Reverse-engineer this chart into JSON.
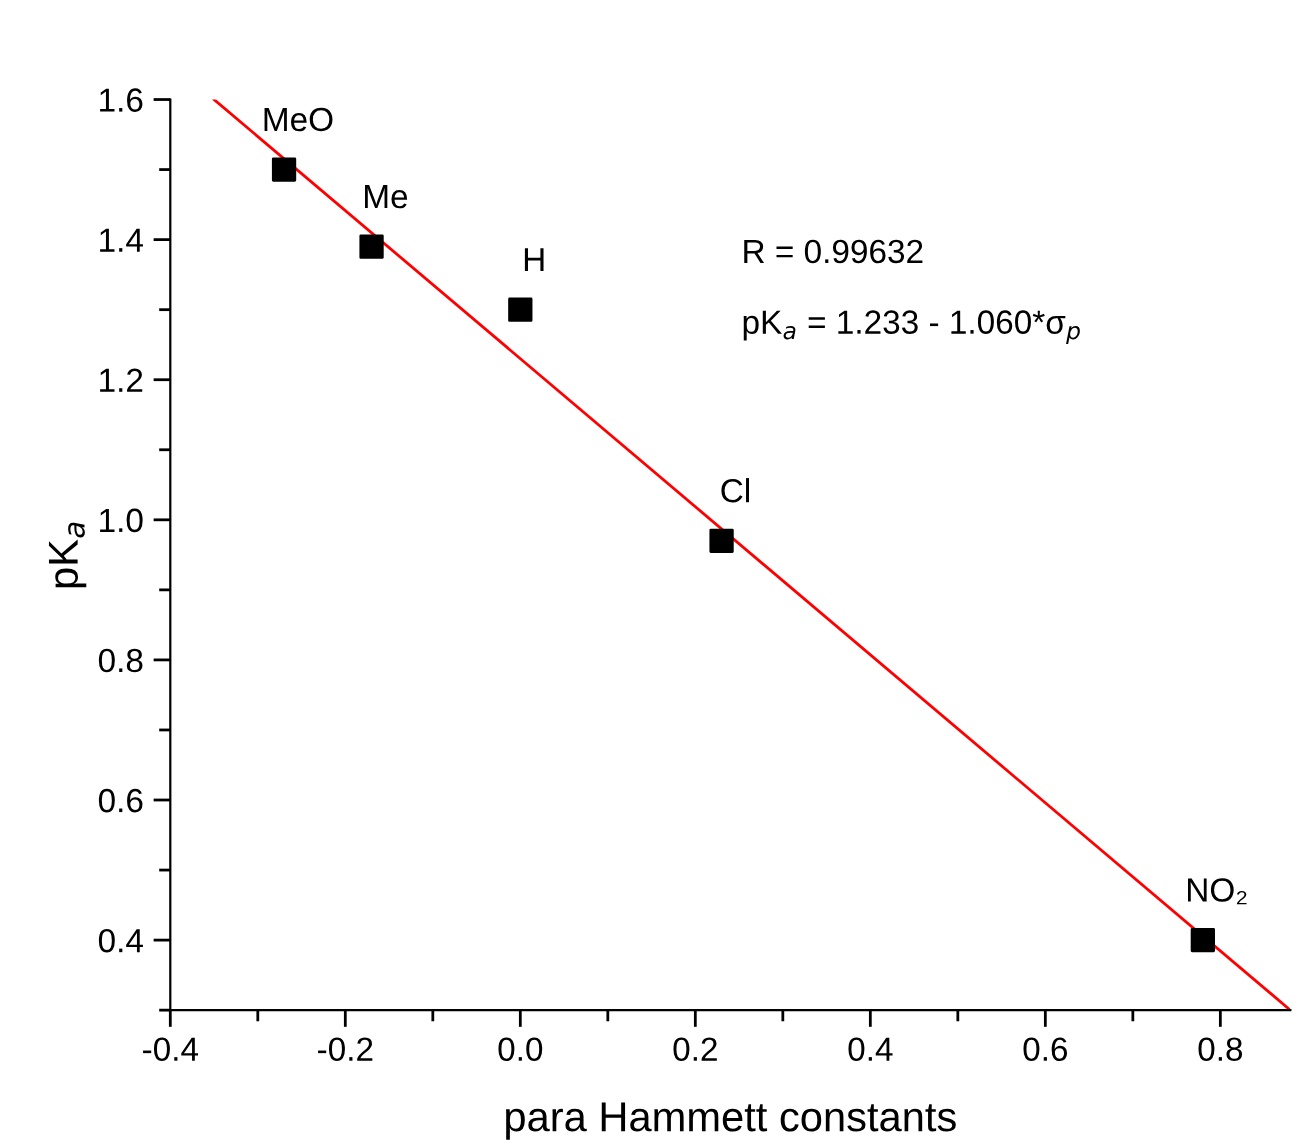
{
  "chart_data": {
    "type": "scatter",
    "xlabel": "para Hammett constants",
    "ylabel": "pK$_{a}$",
    "xlim": [
      -0.4,
      0.88
    ],
    "ylim": [
      0.3,
      1.6
    ],
    "xticks": [
      -0.4,
      {
        "value": -0.3,
        "label": null
      },
      -0.2,
      {
        "value": -0.1,
        "label": null
      },
      {
        "value": 0.0,
        "label": "0.0"
      },
      {
        "value": 0.1,
        "label": null
      },
      0.2,
      {
        "value": 0.3,
        "label": null
      },
      0.4,
      {
        "value": 0.5,
        "label": null
      },
      0.6,
      {
        "value": 0.7,
        "label": null
      },
      0.8
    ],
    "yticks": [
      {
        "value": 0.3,
        "label": null
      },
      0.4,
      {
        "value": 0.5,
        "label": null
      },
      0.6,
      {
        "value": 0.7,
        "label": null
      },
      0.8,
      {
        "value": 0.9,
        "label": null
      },
      {
        "value": 1.0,
        "label": "1.0"
      },
      {
        "value": 1.1,
        "label": null
      },
      1.2,
      {
        "value": 1.3,
        "label": null
      },
      1.4,
      {
        "value": 1.5,
        "label": null
      },
      1.6
    ],
    "grid": false,
    "legend": false,
    "series": [
      {
        "color": "#000000",
        "marker": "square",
        "x": [
          -0.27,
          -0.17,
          0.0,
          0.23,
          0.78
        ],
        "values": [
          1.5,
          1.39,
          1.3,
          0.97,
          0.4
        ],
        "value_labels": [
          "MeO",
          "Me",
          "H",
          "Cl",
          "NO₂"
        ]
      },
      {
        "type": "line",
        "color": "#ff0000",
        "marker": "none",
        "line_style": "solid",
        "x": [
          -0.35,
          0.88
        ],
        "values": [
          1.6,
          0.3
        ]
      }
    ],
    "annotations": [
      "R = 0.99632",
      "pK$_{a}$ = 1.233 - 1.060*σ$_{p}$"
    ]
  }
}
